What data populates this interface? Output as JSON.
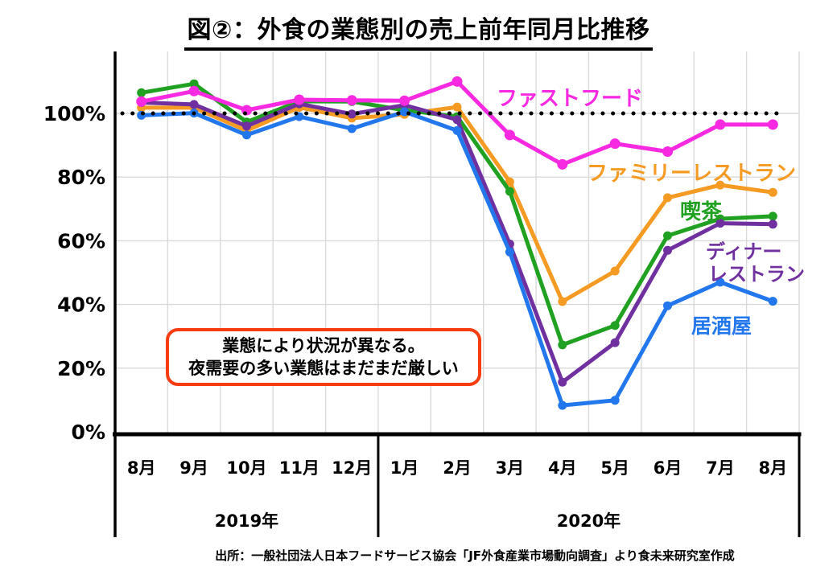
{
  "page": {
    "title": "図②：外食の業態別の売上前年同月比推移",
    "footer": "出所：一般社団法人日本フードサービス協会「JF外食産業市場動向調査」より食未来研究室作成"
  },
  "annotation": {
    "line1": "業態により状況が異なる。",
    "line2": "夜需要の多い業態はまだまだ厳しい"
  },
  "colors": {
    "grid": "#d9d9d9",
    "axis": "#000000",
    "annotation_border": "#f63c10",
    "background": "#ffffff"
  },
  "chart_data": {
    "type": "line",
    "title": "図②：外食の業態別の売上前年同月比推移",
    "unit": "%",
    "categories": [
      "8月",
      "9月",
      "10月",
      "11月",
      "12月",
      "1月",
      "2月",
      "3月",
      "4月",
      "5月",
      "6月",
      "7月",
      "8月"
    ],
    "year_groups": [
      {
        "label": "2019年",
        "months": 5
      },
      {
        "label": "2020年",
        "months": 8
      }
    ],
    "y_ticks": [
      0,
      20,
      40,
      60,
      80,
      100
    ],
    "y_tick_labels": [
      "0%",
      "20%",
      "40%",
      "60%",
      "80%",
      "100%"
    ],
    "ylim": [
      0,
      120
    ],
    "grid": true,
    "legend_position": "inline-labels",
    "reference_line": {
      "value": 100,
      "style": "dotted",
      "color": "#000000"
    },
    "series": [
      {
        "key": "fast-food",
        "name": "ファストフード",
        "label_lines": [
          "ファストフード"
        ],
        "color": "#f72ae2",
        "values": [
          103.7,
          107.0,
          101.0,
          104.3,
          104.1,
          104.0,
          110.0,
          93.2,
          84.0,
          90.5,
          88.0,
          96.5,
          96.5
        ]
      },
      {
        "key": "family-restaurant",
        "name": "ファミリーレストラン",
        "label_lines": [
          "ファミリーレストラン"
        ],
        "color": "#f59a23",
        "values": [
          101.8,
          101.8,
          94.6,
          101.9,
          98.5,
          99.7,
          102.0,
          78.5,
          40.9,
          50.5,
          73.5,
          77.5,
          75.2
        ]
      },
      {
        "key": "coffee-shop",
        "name": "喫茶",
        "label_lines": [
          "喫茶"
        ],
        "color": "#21a121",
        "values": [
          106.5,
          109.3,
          97.3,
          103.8,
          103.7,
          101.0,
          99.0,
          75.5,
          27.3,
          33.4,
          61.6,
          66.9,
          67.7
        ]
      },
      {
        "key": "dinner-restaurant",
        "name": "ディナーレストラン",
        "label_lines": [
          "ディナー",
          "レストラン"
        ],
        "color": "#7030a0",
        "values": [
          103.4,
          102.8,
          96.0,
          103.0,
          99.8,
          102.6,
          98.0,
          59.0,
          15.6,
          28.0,
          57.0,
          65.5,
          65.2
        ]
      },
      {
        "key": "izakaya",
        "name": "居酒屋",
        "label_lines": [
          "居酒屋"
        ],
        "color": "#2277ec",
        "values": [
          99.4,
          100.1,
          93.2,
          99.0,
          95.2,
          100.5,
          94.6,
          56.5,
          8.3,
          9.9,
          39.6,
          47.0,
          41.0
        ]
      }
    ]
  }
}
